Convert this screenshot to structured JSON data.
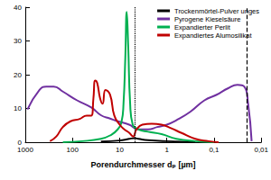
{
  "chart_data": {
    "type": "line",
    "log": "x",
    "grid": false,
    "legend": "upper right",
    "x_label": "Porendurchmesser dₚ [µm]",
    "xlim": [
      1000,
      0.01
    ],
    "xticks": [
      1000,
      100,
      10,
      1,
      {
        "value": 0.1,
        "label": "0,1"
      },
      {
        "value": 0.01,
        "label": "0,01"
      }
    ],
    "ylim": [
      0,
      40
    ],
    "yticks": [
      0,
      10,
      20,
      30,
      40
    ],
    "reference_lines": [
      {
        "x": 4.8,
        "line_style": "dotted"
      },
      {
        "x": 0.017,
        "line_style": "dashed"
      }
    ],
    "series": [
      {
        "name": "Trockenmörtel-Pulver unges",
        "color": "#000000",
        "x": [
          25,
          10,
          6.3,
          4.8,
          4.0,
          2.5,
          1.0,
          0.25
        ],
        "values": [
          0.2,
          0.5,
          1.0,
          1.2,
          1.0,
          0.6,
          0.3,
          0.1
        ]
      },
      {
        "name": "Pyrogene Kieselsäure",
        "color": "#7030a0",
        "x": [
          900,
          500,
          360,
          250,
          160,
          80,
          40,
          25,
          16,
          11,
          6.3,
          4.0,
          2.5,
          1.6,
          1.0,
          0.63,
          0.32,
          0.16,
          0.09,
          0.05,
          0.032,
          0.023,
          0.019,
          0.016
        ],
        "values": [
          9.7,
          15.5,
          16.5,
          16.5,
          15,
          12.4,
          10.3,
          8,
          7,
          6.2,
          5.2,
          3.8,
          3.8,
          4.5,
          5.2,
          6.5,
          9,
          12.4,
          14,
          16,
          17,
          16.5,
          11.4,
          0.3
        ]
      },
      {
        "name": "Expandierter Perlit",
        "color": "#00b050",
        "x": [
          160,
          63,
          25,
          16,
          11,
          9.1,
          8.3,
          7.6,
          7.1,
          6.6,
          6.0,
          5.3,
          4.0,
          2.5,
          1.3,
          0.63,
          0.25,
          0.1
        ],
        "values": [
          0,
          0.3,
          1,
          2,
          3.8,
          6.2,
          11.4,
          25,
          38.6,
          28.6,
          11.4,
          5.2,
          3.8,
          3.1,
          2.4,
          1,
          0.3,
          0
        ]
      },
      {
        "name": "Expandiertes Alumosilikat",
        "color": "#c00000",
        "x": [
          300,
          220,
          160,
          110,
          70,
          50,
          40,
          36,
          33,
          30,
          26,
          23,
          20,
          16,
          13,
          10,
          8,
          6.3,
          5.2,
          4.4,
          3.3,
          2.1,
          1.3,
          0.8,
          0.5,
          0.25,
          0.13,
          0.08
        ],
        "values": [
          0.3,
          1.7,
          4.5,
          6.2,
          6.9,
          7.9,
          7.9,
          13,
          18.3,
          17.6,
          13,
          11.4,
          15.5,
          14.1,
          7.9,
          5.2,
          3.8,
          2.8,
          1.7,
          3.8,
          5.2,
          5.5,
          5.2,
          4.1,
          2.8,
          1,
          0.3,
          0
        ]
      }
    ]
  }
}
